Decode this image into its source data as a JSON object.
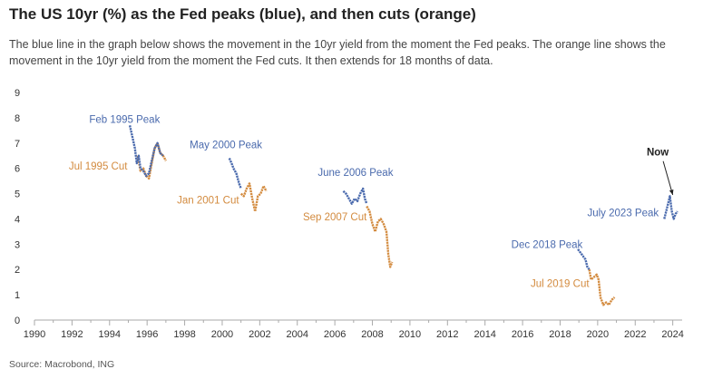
{
  "title": "The US 10yr (%) as the Fed peaks (blue), and then cuts (orange)",
  "subtitle": "The blue line in the graph below shows the movement in the 10yr yield from the moment the Fed peaks. The orange line shows the movement in the 10yr yield from the moment the Fed cuts. It then extends for 18 months of data.",
  "source": "Source: Macrobond, ING",
  "colors": {
    "peak": "#4a6aad",
    "cut": "#d38b3f",
    "axis": "#aaaaaa",
    "text": "#444444"
  },
  "chart_data": {
    "type": "line",
    "xlim": [
      1990,
      2024.5
    ],
    "ylim": [
      0,
      9
    ],
    "x_ticks": [
      "1990",
      "1992",
      "1994",
      "1996",
      "1998",
      "2000",
      "2002",
      "2004",
      "2006",
      "2008",
      "2010",
      "2012",
      "2014",
      "2016",
      "2018",
      "2020",
      "2022",
      "2024"
    ],
    "y_ticks": [
      "0",
      "1",
      "2",
      "3",
      "4",
      "5",
      "6",
      "7",
      "8",
      "9"
    ],
    "grid": false,
    "series": [
      {
        "type": "peak",
        "x": [
          1995.08,
          1995.2,
          1995.35,
          1995.45,
          1995.55,
          1995.65,
          1995.8,
          1995.95,
          1996.1,
          1996.25,
          1996.4,
          1996.55,
          1996.7,
          1996.85
        ],
        "y": [
          7.7,
          7.3,
          6.8,
          6.2,
          6.5,
          6.0,
          5.9,
          5.7,
          5.8,
          6.3,
          6.8,
          7.0,
          6.6,
          6.5
        ]
      },
      {
        "type": "cut",
        "x": [
          1995.5,
          1995.65,
          1995.8,
          1995.95,
          1996.1,
          1996.25,
          1996.4,
          1996.55,
          1996.7,
          1996.85,
          1997.0
        ],
        "y": [
          6.5,
          5.9,
          6.0,
          5.7,
          5.6,
          6.2,
          6.8,
          7.0,
          6.6,
          6.5,
          6.3
        ]
      },
      {
        "type": "peak",
        "x": [
          2000.38,
          2000.5,
          2000.6,
          2000.75,
          2000.9,
          2001.0
        ],
        "y": [
          6.4,
          6.2,
          6.0,
          5.8,
          5.4,
          5.2
        ]
      },
      {
        "type": "cut",
        "x": [
          2001.0,
          2001.15,
          2001.3,
          2001.45,
          2001.6,
          2001.75,
          2001.9,
          2002.05,
          2002.2,
          2002.35
        ],
        "y": [
          5.0,
          4.9,
          5.2,
          5.4,
          4.8,
          4.3,
          4.9,
          5.0,
          5.3,
          5.1
        ]
      },
      {
        "type": "peak",
        "x": [
          2006.45,
          2006.6,
          2006.75,
          2006.9,
          2007.05,
          2007.2,
          2007.35,
          2007.5,
          2007.6,
          2007.7
        ],
        "y": [
          5.1,
          5.0,
          4.8,
          4.6,
          4.8,
          4.7,
          5.0,
          5.2,
          4.8,
          4.6
        ]
      },
      {
        "type": "cut",
        "x": [
          2007.7,
          2007.85,
          2008.0,
          2008.15,
          2008.3,
          2008.45,
          2008.6,
          2008.75,
          2008.85,
          2008.95,
          2009.05
        ],
        "y": [
          4.5,
          4.3,
          3.8,
          3.5,
          3.9,
          4.0,
          3.8,
          3.5,
          2.6,
          2.1,
          2.3
        ]
      },
      {
        "type": "peak",
        "x": [
          2018.95,
          2019.05,
          2019.15,
          2019.25,
          2019.35,
          2019.45,
          2019.55
        ],
        "y": [
          2.8,
          2.7,
          2.6,
          2.5,
          2.4,
          2.1,
          2.0
        ]
      },
      {
        "type": "cut",
        "x": [
          2019.55,
          2019.65,
          2019.8,
          2019.95,
          2020.05,
          2020.15,
          2020.3,
          2020.45,
          2020.6,
          2020.75,
          2020.9
        ],
        "y": [
          2.0,
          1.6,
          1.7,
          1.8,
          1.6,
          0.9,
          0.6,
          0.7,
          0.6,
          0.8,
          0.9
        ]
      },
      {
        "type": "peak",
        "x": [
          2023.55,
          2023.65,
          2023.75,
          2023.85,
          2023.95,
          2024.05,
          2024.15,
          2024.25
        ],
        "y": [
          4.0,
          4.3,
          4.6,
          4.9,
          4.3,
          4.0,
          4.2,
          4.3
        ]
      }
    ],
    "annotations": [
      {
        "text": "Feb 1995 Peak",
        "type": "peak",
        "x": 1994.8,
        "y": 7.8,
        "anchor": "middle"
      },
      {
        "text": "Jul 1995 Cut",
        "type": "cut",
        "x": 1994.95,
        "y": 5.95,
        "anchor": "end"
      },
      {
        "text": "May 2000 Peak",
        "type": "peak",
        "x": 2000.2,
        "y": 6.8,
        "anchor": "middle"
      },
      {
        "text": "Jan 2001 Cut",
        "type": "cut",
        "x": 2000.9,
        "y": 4.6,
        "anchor": "end"
      },
      {
        "text": "June 2006 Peak",
        "type": "peak",
        "x": 2007.1,
        "y": 5.7,
        "anchor": "middle"
      },
      {
        "text": "Sep 2007 Cut",
        "type": "cut",
        "x": 2007.7,
        "y": 3.95,
        "anchor": "end"
      },
      {
        "text": "Dec 2018 Peak",
        "type": "peak",
        "x": 2017.3,
        "y": 2.85,
        "anchor": "middle"
      },
      {
        "text": "Jul 2019 Cut",
        "type": "cut",
        "x": 2019.55,
        "y": 1.3,
        "anchor": "end"
      },
      {
        "text": "July 2023 Peak",
        "type": "peak",
        "x": 2023.25,
        "y": 4.1,
        "anchor": "end"
      }
    ],
    "now_label": {
      "text": "Now",
      "x": 2023.2,
      "y": 6.5,
      "arrow_to_x": 2024.0,
      "arrow_to_y": 4.95
    }
  }
}
